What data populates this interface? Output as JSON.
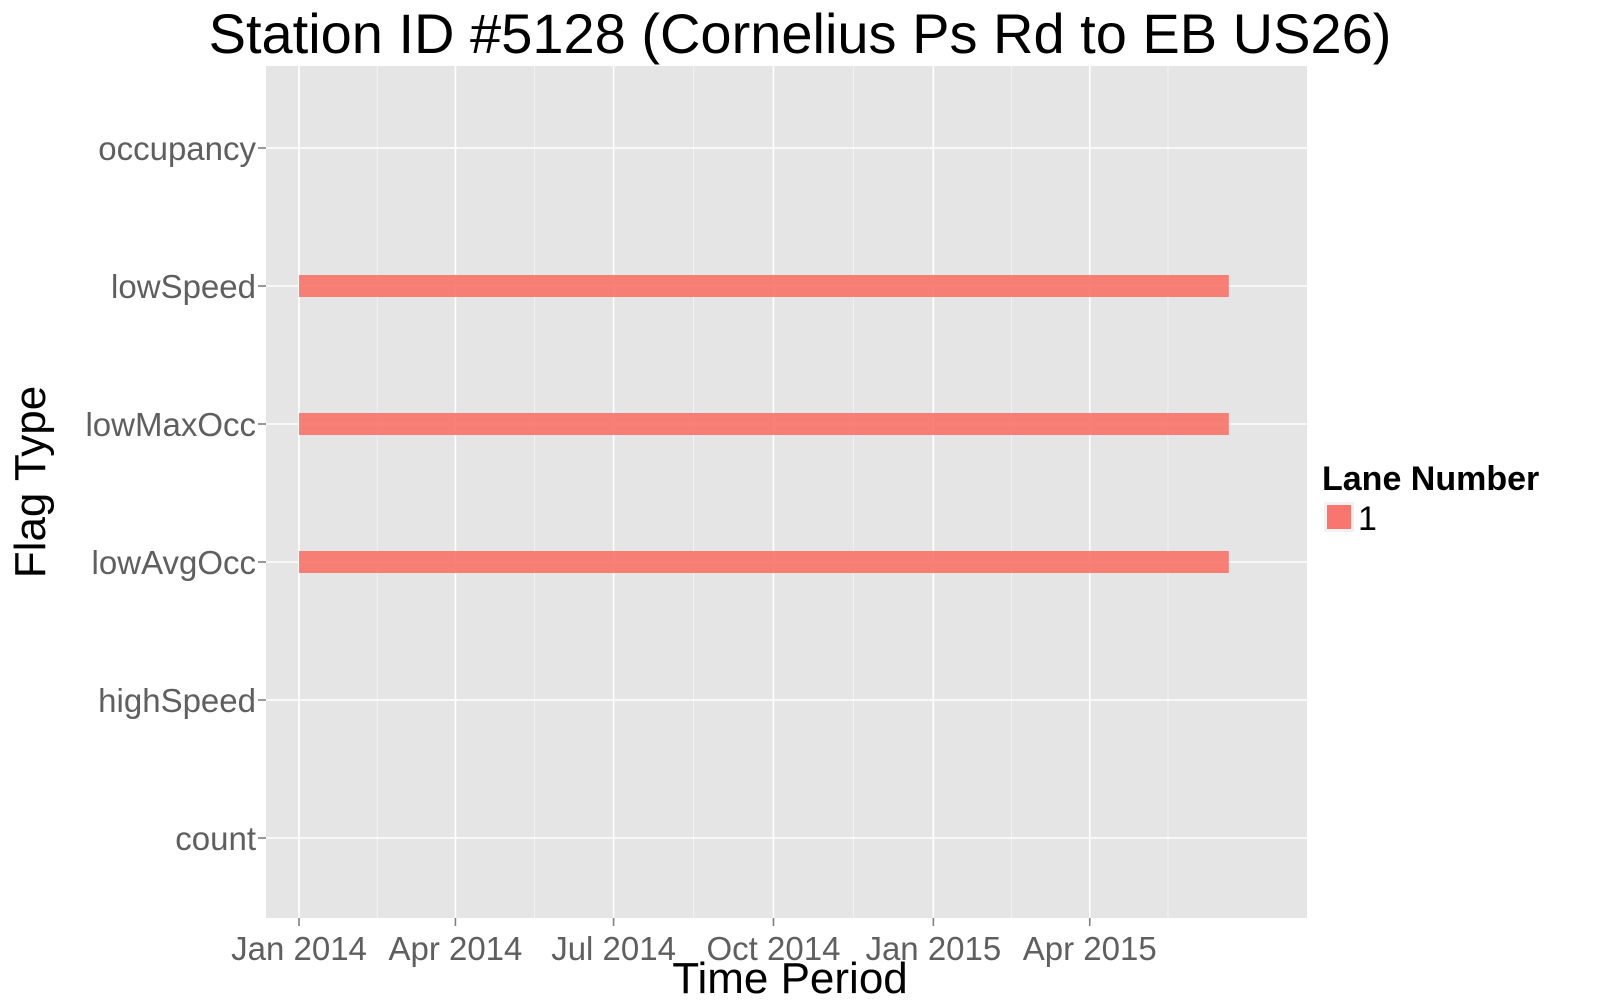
{
  "chart_data": {
    "type": "gantt",
    "title": "Station ID #5128 (Cornelius Ps Rd to EB US26)",
    "xlabel": "Time Period",
    "ylabel": "Flag Type",
    "x_axis_type": "date",
    "xlim": [
      "2013-12-13",
      "2015-08-04"
    ],
    "x_ticks": [
      {
        "date": "2014-01-01",
        "label": "Jan 2014"
      },
      {
        "date": "2014-04-01",
        "label": "Apr 2014"
      },
      {
        "date": "2014-07-01",
        "label": "Jul 2014"
      },
      {
        "date": "2014-10-01",
        "label": "Oct 2014"
      },
      {
        "date": "2015-01-01",
        "label": "Jan 2015"
      },
      {
        "date": "2015-04-01",
        "label": "Apr 2015"
      }
    ],
    "categories": [
      "occupancy",
      "lowSpeed",
      "lowMaxOcc",
      "lowAvgOcc",
      "highSpeed",
      "count"
    ],
    "series": [
      {
        "name": "1",
        "color": "#F8766D",
        "segments": [
          {
            "category": "lowSpeed",
            "start": "2014-01-01",
            "end": "2015-06-20"
          },
          {
            "category": "lowMaxOcc",
            "start": "2014-01-01",
            "end": "2015-06-20"
          },
          {
            "category": "lowAvgOcc",
            "start": "2014-01-01",
            "end": "2015-06-20"
          }
        ]
      }
    ],
    "legend": {
      "title": "Lane Number",
      "position": "right"
    },
    "grid": true,
    "panel_background": "#E5E5E5",
    "grid_color": "#FFFFFF"
  }
}
